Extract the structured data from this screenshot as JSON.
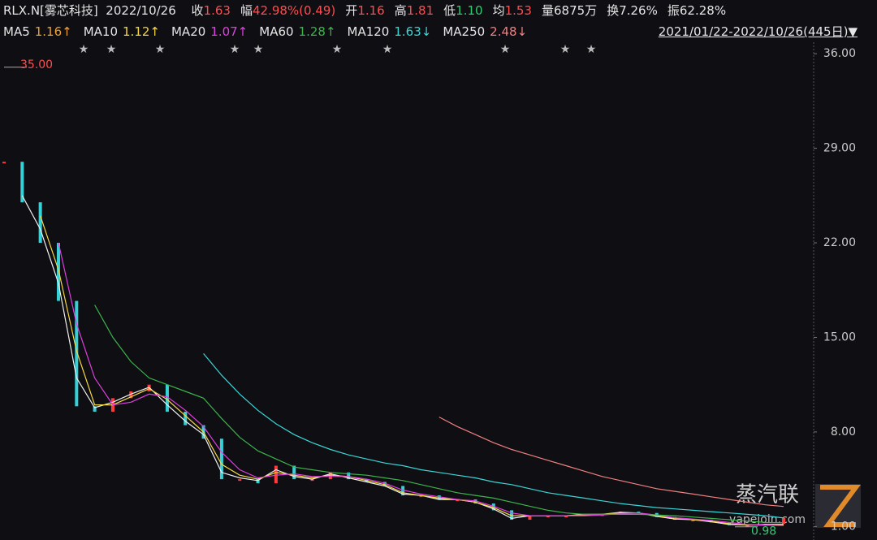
{
  "header": {
    "symbol": "RLX.N[雾芯科技]",
    "date": "2022/10/26",
    "fields": [
      {
        "label": "收",
        "value": "1.63",
        "color": "#ff4d4d"
      },
      {
        "label": "幅",
        "value": "42.98%(0.49)",
        "color": "#ff4d4d"
      },
      {
        "label": "开",
        "value": "1.16",
        "color": "#ff4d4d"
      },
      {
        "label": "高",
        "value": "1.81",
        "color": "#ff4d4d"
      },
      {
        "label": "低",
        "value": "1.10",
        "color": "#2ecc71"
      },
      {
        "label": "均",
        "value": "1.53",
        "color": "#ff4d4d"
      },
      {
        "label": "量",
        "value": "6875万",
        "color": "#e6e6e6"
      },
      {
        "label": "换",
        "value": "7.26%",
        "color": "#e6e6e6"
      },
      {
        "label": "振",
        "value": "62.28%",
        "color": "#e6e6e6"
      }
    ],
    "ma_values": [
      "1.16↑",
      "1.12↑",
      "1.07↑",
      "1.28↑",
      "1.63↓",
      "2.48↓"
    ],
    "range": "2021/01/22-2022/10/26(445日)"
  },
  "watermark": {
    "brand": "蒸汽联",
    "site": "vapejoin.com"
  },
  "chart_data": {
    "type": "candlestick",
    "categories": [
      null,
      null,
      null,
      null,
      null,
      null,
      null,
      null,
      null,
      null,
      null,
      null,
      null,
      null,
      null,
      null,
      null,
      null,
      null,
      null,
      null,
      null,
      null,
      null,
      null,
      null,
      null,
      null,
      null,
      null,
      null,
      null,
      null,
      null,
      null,
      null,
      null,
      null,
      null,
      null,
      null,
      null,
      null,
      null
    ],
    "values": [
      28,
      25,
      22,
      17.7,
      9.9,
      9.5,
      10.5,
      11,
      11.5,
      9.5,
      8.5,
      7.5,
      4.5,
      4.5,
      4.2,
      5.5,
      4.5,
      4.5,
      5.0,
      4.5,
      4.3,
      4.0,
      3.3,
      3.3,
      3.0,
      3.0,
      2.7,
      2.2,
      1.5,
      1.8,
      1.8,
      1.8,
      1.9,
      1.9,
      2.1,
      2.0,
      1.7,
      1.5,
      1.5,
      1.3,
      1.1,
      1.1,
      1.2,
      1.63
    ],
    "up_color": "#ff3b3b",
    "down_color": "#36d1d6",
    "series": [
      {
        "name": "MA5",
        "color": "#f0f0f0",
        "values": [
          null,
          25.5,
          23,
          19,
          12,
          9.8,
          10.2,
          10.8,
          11.3,
          10,
          8.8,
          7.8,
          5,
          4.6,
          4.4,
          5.2,
          4.7,
          4.5,
          4.9,
          4.6,
          4.3,
          4.0,
          3.4,
          3.3,
          3.0,
          3.0,
          2.8,
          2.3,
          1.6,
          1.8,
          1.8,
          1.8,
          1.9,
          1.9,
          2.05,
          2.0,
          1.75,
          1.55,
          1.5,
          1.35,
          1.15,
          1.1,
          1.15,
          1.16
        ]
      },
      {
        "name": "MA10",
        "color": "#f5d742",
        "values": [
          null,
          null,
          24,
          20,
          14,
          10,
          10,
          10.6,
          11.2,
          10.4,
          9.2,
          8,
          5.6,
          4.8,
          4.5,
          5,
          4.8,
          4.6,
          4.8,
          4.7,
          4.4,
          4.1,
          3.5,
          3.3,
          3.1,
          3.0,
          2.8,
          2.4,
          1.8,
          1.8,
          1.8,
          1.8,
          1.85,
          1.9,
          2.0,
          2.0,
          1.8,
          1.6,
          1.5,
          1.4,
          1.2,
          1.1,
          1.1,
          1.12
        ]
      },
      {
        "name": "MA20",
        "color": "#e040e0",
        "values": [
          null,
          null,
          null,
          22,
          16,
          12,
          10,
          10.2,
          10.8,
          10.6,
          9.6,
          8.4,
          6.5,
          5.2,
          4.6,
          4.8,
          4.9,
          4.7,
          4.7,
          4.7,
          4.5,
          4.2,
          3.7,
          3.4,
          3.2,
          3.0,
          2.9,
          2.5,
          2.0,
          1.8,
          1.8,
          1.8,
          1.8,
          1.85,
          1.95,
          2.0,
          1.85,
          1.65,
          1.55,
          1.45,
          1.3,
          1.15,
          1.1,
          1.07
        ]
      },
      {
        "name": "MA60",
        "color": "#3cb44b",
        "values": [
          null,
          null,
          null,
          null,
          null,
          17.4,
          15,
          13.2,
          12,
          11.5,
          11,
          10.5,
          9,
          7.6,
          6.6,
          6,
          5.4,
          5.2,
          5,
          4.9,
          4.8,
          4.6,
          4.4,
          4.1,
          3.8,
          3.5,
          3.3,
          3.1,
          2.8,
          2.5,
          2.2,
          2.0,
          1.9,
          1.9,
          1.9,
          1.9,
          1.85,
          1.8,
          1.7,
          1.6,
          1.5,
          1.4,
          1.3,
          1.28
        ]
      },
      {
        "name": "MA120",
        "color": "#3ad6d6",
        "values": [
          null,
          null,
          null,
          null,
          null,
          null,
          null,
          null,
          null,
          null,
          null,
          13.8,
          12.2,
          10.8,
          9.6,
          8.6,
          7.8,
          7.2,
          6.7,
          6.3,
          6.0,
          5.7,
          5.5,
          5.2,
          5.0,
          4.8,
          4.6,
          4.3,
          4.1,
          3.8,
          3.5,
          3.3,
          3.1,
          2.9,
          2.7,
          2.55,
          2.4,
          2.3,
          2.2,
          2.1,
          2.0,
          1.9,
          1.8,
          1.63
        ]
      },
      {
        "name": "MA250",
        "color": "#f08080",
        "values": [
          null,
          null,
          null,
          null,
          null,
          null,
          null,
          null,
          null,
          null,
          null,
          null,
          null,
          null,
          null,
          null,
          null,
          null,
          null,
          null,
          null,
          null,
          null,
          null,
          9.1,
          8.4,
          7.8,
          7.2,
          6.7,
          6.3,
          5.9,
          5.5,
          5.1,
          4.7,
          4.4,
          4.1,
          3.8,
          3.6,
          3.4,
          3.2,
          3.0,
          2.8,
          2.6,
          2.48
        ]
      }
    ],
    "annotations": [
      {
        "value": 35,
        "label": "35.00",
        "color": "#ff4d4d"
      },
      {
        "value": 0.98,
        "label": "0.98",
        "color": "#2ecc71"
      }
    ],
    "ylim": [
      0,
      36.85
    ],
    "yticks": [
      {
        "value": 36,
        "label": "36.00"
      },
      {
        "value": 29,
        "label": "29.00"
      },
      {
        "value": 22,
        "label": "22.00"
      },
      {
        "value": 15,
        "label": "15.00"
      },
      {
        "value": 8,
        "label": "8.00"
      },
      {
        "value": 1,
        "label": "1.00"
      }
    ],
    "grid": false
  }
}
